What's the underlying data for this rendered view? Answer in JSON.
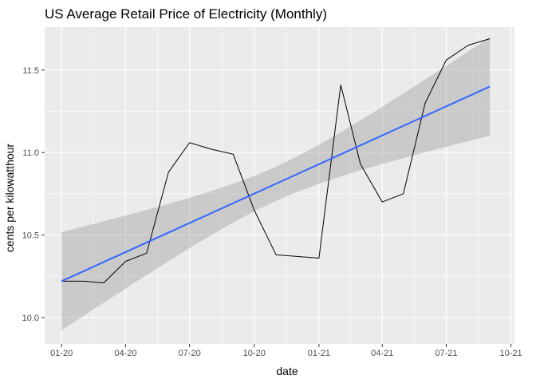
{
  "chart_data": {
    "type": "line",
    "title": "US Average Retail Price of Electricity (Monthly)",
    "xlabel": "date",
    "ylabel": "cents per kilowatthour",
    "x_tick_labels": [
      "01-20",
      "04-20",
      "07-20",
      "10-20",
      "01-21",
      "04-21",
      "07-21",
      "10-21"
    ],
    "y_tick_labels": [
      "10.0",
      "10.5",
      "11.0",
      "11.5"
    ],
    "y_ticks": [
      10.0,
      10.5,
      11.0,
      11.5
    ],
    "ylim": [
      9.84,
      11.76
    ],
    "xlim": [
      "2019-12-08",
      "2021-10-06"
    ],
    "grid": true,
    "series": [
      {
        "x": [
          "2020-01",
          "2020-02",
          "2020-03",
          "2020-04",
          "2020-05",
          "2020-06",
          "2020-07",
          "2020-08",
          "2020-09",
          "2020-10",
          "2020-11",
          "2020-12",
          "2021-01",
          "2021-02",
          "2021-03",
          "2021-04",
          "2021-05",
          "2021-06",
          "2021-07",
          "2021-08",
          "2021-09"
        ],
        "values": [
          10.22,
          10.22,
          10.21,
          10.34,
          10.39,
          10.88,
          11.06,
          11.02,
          10.99,
          10.65,
          10.38,
          10.37,
          10.36,
          11.41,
          10.93,
          10.7,
          10.75,
          11.3,
          11.56,
          11.65,
          11.69
        ],
        "color": "#000000"
      }
    ],
    "trend": {
      "method": "linear fit",
      "start": 10.22,
      "end": 11.4,
      "band_lower": [
        9.93,
        11.1
      ],
      "band_upper": [
        10.52,
        11.7
      ],
      "line_color": "#3366FF",
      "band_color": "#999999"
    },
    "colors": {
      "panel_background": "#EBEBEB",
      "grid": "#FFFFFF"
    }
  }
}
